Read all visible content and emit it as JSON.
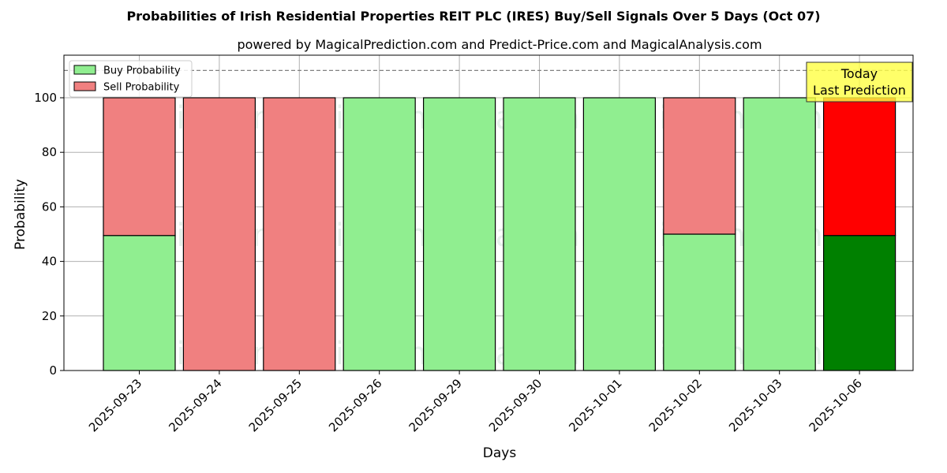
{
  "chart_data": {
    "type": "bar",
    "stacked": true,
    "title": "Probabilities of Irish Residential Properties REIT PLC (IRES) Buy/Sell Signals Over 5 Days (Oct 07)",
    "subtitle": "powered by MagicalPrediction.com and Predict-Price.com and MagicalAnalysis.com",
    "xlabel": "Days",
    "ylabel": "Probability",
    "ylim": [
      0,
      115
    ],
    "yticks": [
      0,
      20,
      40,
      60,
      80,
      100
    ],
    "grid": true,
    "legend_position": "top-left",
    "categories": [
      "2025-09-23",
      "2025-09-24",
      "2025-09-25",
      "2025-09-26",
      "2025-09-29",
      "2025-09-30",
      "2025-10-01",
      "2025-10-02",
      "2025-10-03",
      "2025-10-06"
    ],
    "series": [
      {
        "name": "Buy Probability",
        "color": "#90ee90",
        "values": [
          49.5,
          0,
          0,
          100,
          100,
          100,
          100,
          50,
          100,
          49.5
        ]
      },
      {
        "name": "Sell Probability",
        "color": "#f08080",
        "values": [
          50.5,
          100,
          100,
          0,
          0,
          0,
          0,
          50,
          0,
          50.5
        ]
      }
    ],
    "highlight": {
      "index": 9,
      "buy_color": "#008000",
      "sell_color": "#ff0000"
    },
    "reference_line": {
      "y": 110,
      "style": "dashed"
    },
    "annotation": {
      "lines": [
        "Today",
        "Last Prediction"
      ],
      "background": "#ffff44"
    },
    "watermarks": [
      "MagicalAnalysis.com",
      "MagicalPrediction.com"
    ]
  }
}
